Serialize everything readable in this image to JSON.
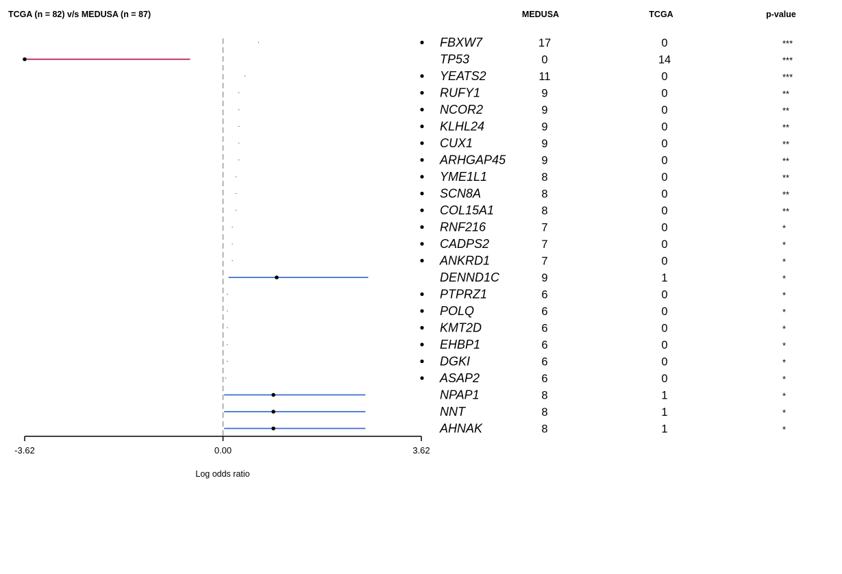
{
  "title": "TCGA (n = 82) v/s MEDUSA (n = 87)",
  "columns": {
    "medusa": "MEDUSA",
    "tcga": "TCGA",
    "pvalue": "p-value"
  },
  "colors": {
    "up": "#b5185b",
    "down": "#3a6fc9",
    "point": "#000000",
    "zero_line": "#999999"
  },
  "chart_data": {
    "type": "forest",
    "xlabel": "Log odds ratio",
    "xlim": [
      -3.62,
      3.62
    ],
    "x_ticks": [
      "-3.62",
      "0.00",
      "3.62"
    ],
    "rows": [
      {
        "gene": "FBXW7",
        "medusa": "17",
        "tcga": "0",
        "p": "***",
        "bullet": true,
        "est": 0.65,
        "lo": 0.65,
        "hi": 0.65
      },
      {
        "gene": "TP53",
        "medusa": "0",
        "tcga": "14",
        "p": "***",
        "bullet": false,
        "est": -3.62,
        "lo": -3.62,
        "hi": -0.6,
        "dir": "up"
      },
      {
        "gene": "YEATS2",
        "medusa": "11",
        "tcga": "0",
        "p": "***",
        "bullet": true,
        "est": 0.4,
        "lo": 0.4,
        "hi": 0.4
      },
      {
        "gene": "RUFY1",
        "medusa": "9",
        "tcga": "0",
        "p": "**",
        "bullet": true,
        "est": 0.29,
        "lo": 0.29,
        "hi": 0.29
      },
      {
        "gene": "NCOR2",
        "medusa": "9",
        "tcga": "0",
        "p": "**",
        "bullet": true,
        "est": 0.29,
        "lo": 0.29,
        "hi": 0.29
      },
      {
        "gene": "KLHL24",
        "medusa": "9",
        "tcga": "0",
        "p": "**",
        "bullet": true,
        "est": 0.29,
        "lo": 0.29,
        "hi": 0.29
      },
      {
        "gene": "CUX1",
        "medusa": "9",
        "tcga": "0",
        "p": "**",
        "bullet": true,
        "est": 0.29,
        "lo": 0.29,
        "hi": 0.29
      },
      {
        "gene": "ARHGAP45",
        "medusa": "9",
        "tcga": "0",
        "p": "**",
        "bullet": true,
        "est": 0.29,
        "lo": 0.29,
        "hi": 0.29
      },
      {
        "gene": "YME1L1",
        "medusa": "8",
        "tcga": "0",
        "p": "**",
        "bullet": true,
        "est": 0.24,
        "lo": 0.24,
        "hi": 0.24
      },
      {
        "gene": "SCN8A",
        "medusa": "8",
        "tcga": "0",
        "p": "**",
        "bullet": true,
        "est": 0.24,
        "lo": 0.24,
        "hi": 0.24
      },
      {
        "gene": "COL15A1",
        "medusa": "8",
        "tcga": "0",
        "p": "**",
        "bullet": true,
        "est": 0.24,
        "lo": 0.24,
        "hi": 0.24
      },
      {
        "gene": "RNF216",
        "medusa": "7",
        "tcga": "0",
        "p": "*",
        "bullet": true,
        "est": 0.17,
        "lo": 0.17,
        "hi": 0.17
      },
      {
        "gene": "CADPS2",
        "medusa": "7",
        "tcga": "0",
        "p": "*",
        "bullet": true,
        "est": 0.17,
        "lo": 0.17,
        "hi": 0.17
      },
      {
        "gene": "ANKRD1",
        "medusa": "7",
        "tcga": "0",
        "p": "*",
        "bullet": true,
        "est": 0.17,
        "lo": 0.17,
        "hi": 0.17
      },
      {
        "gene": "DENND1C",
        "medusa": "9",
        "tcga": "1",
        "p": "*",
        "bullet": false,
        "est": 0.98,
        "lo": 0.1,
        "hi": 2.65,
        "dir": "down"
      },
      {
        "gene": "PTPRZ1",
        "medusa": "6",
        "tcga": "0",
        "p": "*",
        "bullet": true,
        "est": 0.08,
        "lo": 0.08,
        "hi": 0.08
      },
      {
        "gene": "POLQ",
        "medusa": "6",
        "tcga": "0",
        "p": "*",
        "bullet": true,
        "est": 0.08,
        "lo": 0.08,
        "hi": 0.08
      },
      {
        "gene": "KMT2D",
        "medusa": "6",
        "tcga": "0",
        "p": "*",
        "bullet": true,
        "est": 0.08,
        "lo": 0.08,
        "hi": 0.08
      },
      {
        "gene": "EHBP1",
        "medusa": "6",
        "tcga": "0",
        "p": "*",
        "bullet": true,
        "est": 0.08,
        "lo": 0.08,
        "hi": 0.08
      },
      {
        "gene": "DGKI",
        "medusa": "6",
        "tcga": "0",
        "p": "*",
        "bullet": true,
        "est": 0.08,
        "lo": 0.08,
        "hi": 0.08
      },
      {
        "gene": "ASAP2",
        "medusa": "6",
        "tcga": "0",
        "p": "*",
        "bullet": true,
        "est": 0.05,
        "lo": 0.05,
        "hi": 0.05
      },
      {
        "gene": "NPAP1",
        "medusa": "8",
        "tcga": "1",
        "p": "*",
        "bullet": false,
        "est": 0.92,
        "lo": 0.02,
        "hi": 2.6,
        "dir": "down"
      },
      {
        "gene": "NNT",
        "medusa": "8",
        "tcga": "1",
        "p": "*",
        "bullet": false,
        "est": 0.92,
        "lo": 0.02,
        "hi": 2.6,
        "dir": "down"
      },
      {
        "gene": "AHNAK",
        "medusa": "8",
        "tcga": "1",
        "p": "*",
        "bullet": false,
        "est": 0.92,
        "lo": 0.02,
        "hi": 2.6,
        "dir": "down"
      }
    ]
  }
}
